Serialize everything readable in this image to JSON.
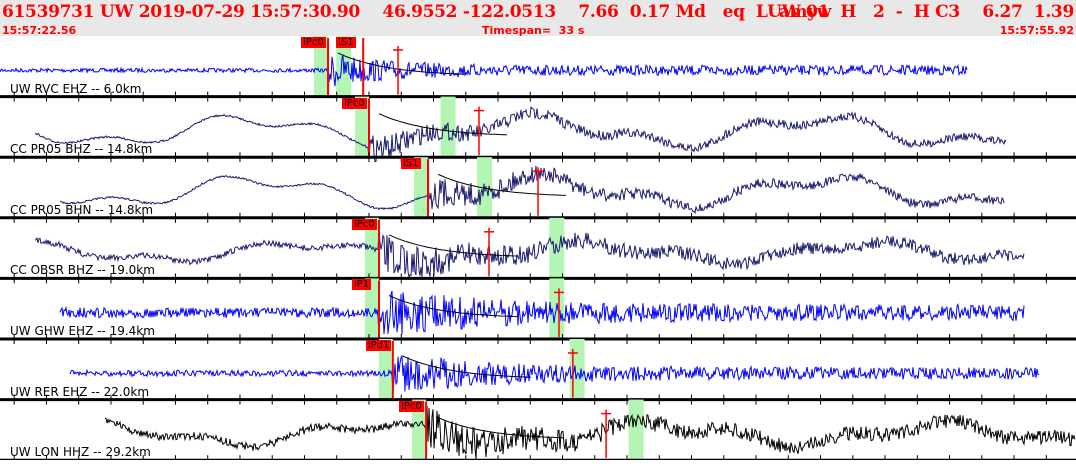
{
  "header": {
    "event_line": "61539731 UW 2019-07-29 15:57:30.90    46.9552 -122.0513    7.66  0.17 Md   eq  L  amyw",
    "event_line_right": "UW 01  H   2  -  H C3    6.27  1.39",
    "start_time": "15:57:22.56",
    "timespan": "Timespan=  33 s",
    "end_time": "15:57:55.92"
  },
  "colors": {
    "header_text": "#ff0000",
    "header_bg": "#e8e8e8",
    "pick": "#ff0000",
    "window": "#b4f5b4"
  },
  "chart_data": {
    "type": "line",
    "x_start": "15:57:22.56",
    "x_end": "15:57:55.92",
    "series": [
      {
        "name": "UW RVC EHZ -- 6.0km",
        "color": "#0000ff",
        "picks": [
          {
            "label": "iPc0",
            "time": "15:57:32.73"
          },
          {
            "label": "iS1",
            "time": "15:57:33.82"
          }
        ]
      },
      {
        "name": "CC PR05 BHZ -- 14.8km",
        "color": "#1a1a6e",
        "picks": [
          {
            "label": "iPc0",
            "time": "15:57:34.00"
          }
        ]
      },
      {
        "name": "CC PR05 BHN -- 14.8km",
        "color": "#1a1a6e",
        "picks": [
          {
            "label": "iS1",
            "time": "15:57:35.83"
          }
        ]
      },
      {
        "name": "CC OBSR BHZ -- 19.0km",
        "color": "#1a1a6e",
        "picks": [
          {
            "label": "iPc0",
            "time": "15:57:34.31"
          }
        ]
      },
      {
        "name": "UW GHW EHZ -- 19.4km",
        "color": "#0000ff",
        "picks": [
          {
            "label": "iP1",
            "time": "15:57:34.31"
          }
        ]
      },
      {
        "name": "UW RER EHZ -- 22.0km",
        "color": "#0000ff",
        "picks": [
          {
            "label": "iPd1",
            "time": "15:57:34.74"
          }
        ]
      },
      {
        "name": "UW LON HHZ -- 29.2km",
        "color": "#000000",
        "picks": [
          {
            "label": "iPc0",
            "time": "15:57:35.77"
          }
        ]
      }
    ]
  }
}
